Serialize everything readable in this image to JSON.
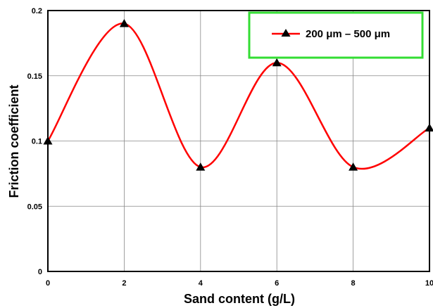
{
  "chart_data": {
    "type": "line",
    "xlabel": "Sand content (g/L)",
    "ylabel": "Friction coefficient",
    "xlim": [
      0,
      10
    ],
    "ylim": [
      0,
      0.2
    ],
    "x_ticks": [
      "0",
      "2",
      "4",
      "6",
      "8",
      "10"
    ],
    "y_ticks": [
      "0",
      "0.05",
      "0.1",
      "0.15",
      "0.2"
    ],
    "grid": true,
    "legend_position": "top-right",
    "series": [
      {
        "name": "200 μm – 500 μm",
        "color": "#ff0000",
        "marker": "triangle",
        "x": [
          0,
          2,
          4,
          6,
          8,
          10
        ],
        "y": [
          0.1,
          0.19,
          0.08,
          0.16,
          0.08,
          0.11
        ]
      }
    ]
  }
}
